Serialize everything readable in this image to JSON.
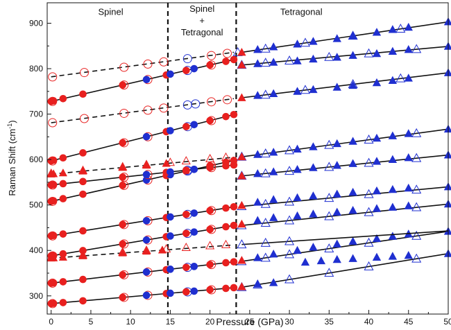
{
  "chart_data": {
    "type": "scatter",
    "title": "",
    "xlabel": "Pressure (GPa)",
    "ylabel_main": "Raman Shift (cm",
    "ylabel_sup": "-1",
    "ylabel_close": ")",
    "xlim": [
      -0.5,
      50
    ],
    "ylim": [
      260,
      945
    ],
    "x_ticks": [
      0,
      5,
      10,
      15,
      20,
      25,
      30,
      35,
      40,
      45,
      50
    ],
    "x_tick_labels": [
      "0",
      "5",
      "10",
      "15",
      "20",
      "25",
      "30",
      "35",
      "40",
      "45",
      "50"
    ],
    "y_ticks": [
      300,
      400,
      500,
      600,
      700,
      800,
      900
    ],
    "y_tick_labels": [
      "300",
      "400",
      "500",
      "600",
      "700",
      "800",
      "900"
    ],
    "grid": false,
    "phase_boundaries": [
      14.7,
      23.3
    ],
    "regions": [
      {
        "lines": [
          "Spinel"
        ],
        "x": 7.5,
        "y": 918
      },
      {
        "lines": [
          "Spinel",
          "+",
          "Tetragonal"
        ],
        "x": 19.0,
        "y": 925
      },
      {
        "lines": [
          "Tetragonal"
        ],
        "x": 31.5,
        "y": 918
      }
    ],
    "colors": {
      "red": "#e8201f",
      "blue": "#1f2fd0",
      "line": "#111111"
    },
    "modes": [
      {
        "dashed": false,
        "red_end": 23,
        "red_x": [
          0,
          0.3,
          1.5,
          4,
          9,
          12,
          14.5,
          15,
          17,
          18,
          20,
          22,
          23
        ],
        "fit": [
          [
            0,
            283
          ],
          [
            23,
            318
          ],
          [
            24,
            319
          ],
          [
            50,
            393
          ]
        ],
        "blue_x": [
          24,
          26,
          28,
          32,
          34,
          36,
          38,
          41,
          43,
          45,
          50
        ],
        "blue_y": [
          320,
          326,
          329,
          374,
          377,
          380,
          382,
          385,
          387,
          389,
          393
        ],
        "hollow_x": [
          0,
          9,
          12,
          17,
          20,
          24,
          26,
          30,
          35,
          40,
          46
        ],
        "tri_shift": 0
      },
      {
        "dashed": false,
        "red_end": 23,
        "red_x": [
          0,
          0.3,
          1.5,
          4,
          9,
          12,
          14.5,
          15,
          17,
          18,
          20,
          22,
          23
        ],
        "fit": [
          [
            0,
            328
          ],
          [
            23,
            375
          ],
          [
            24,
            376
          ],
          [
            50,
            442
          ]
        ],
        "blue_x": [
          24,
          26,
          28,
          31,
          33,
          36,
          38,
          41,
          43,
          45,
          50
        ],
        "blue_y": [
          378,
          384,
          392,
          400,
          407,
          414,
          420,
          426,
          431,
          436,
          442
        ],
        "hollow_x": [
          0,
          9,
          12,
          17,
          20,
          24,
          27,
          30,
          35,
          40,
          46
        ],
        "tri_shift": 0
      },
      {
        "dashed": true,
        "red_end": 14,
        "red_x": [
          0,
          0.3,
          1.5,
          4,
          9,
          12,
          14
        ],
        "fit": [
          [
            0,
            383
          ],
          [
            23,
            412
          ],
          [
            24,
            413
          ],
          [
            50,
            443
          ]
        ],
        "blue_x": [],
        "blue_y": [],
        "hollow_x": [
          0,
          4,
          9,
          12,
          14.5,
          17,
          20,
          22,
          24,
          27,
          30
        ],
        "tri_shift": 10
      },
      {
        "dashed": false,
        "red_end": 23,
        "red_x": [
          0,
          0.3,
          1.5,
          4,
          9,
          12,
          14.5,
          15,
          17,
          18,
          20,
          22,
          23
        ],
        "fit": [
          [
            0,
            388
          ],
          [
            23,
            455
          ],
          [
            24,
            455
          ],
          [
            50,
            502
          ]
        ],
        "blue_x": [
          24,
          26,
          28,
          31,
          33,
          36,
          38,
          41,
          43,
          45,
          50
        ],
        "blue_y": [
          458,
          466,
          472,
          476,
          480,
          484,
          488,
          492,
          495,
          498,
          502
        ],
        "hollow_x": [
          0,
          9,
          12,
          17,
          20,
          24,
          27,
          30,
          35,
          40,
          46
        ],
        "tri_shift": 0
      },
      {
        "dashed": false,
        "red_end": 23,
        "red_x": [
          0,
          0.3,
          1.5,
          4,
          9,
          12,
          14.5,
          15,
          17,
          18,
          20,
          22,
          23
        ],
        "fit": [
          [
            0,
            432
          ],
          [
            23,
            496
          ],
          [
            24,
            497
          ],
          [
            50,
            540
          ]
        ],
        "blue_x": [
          24,
          26,
          28,
          31,
          33,
          36,
          38,
          41,
          43,
          45,
          50
        ],
        "blue_y": [
          499,
          506,
          512,
          516,
          520,
          524,
          528,
          531,
          534,
          537,
          540
        ],
        "hollow_x": [
          0,
          9,
          12,
          17,
          20,
          24,
          27,
          30,
          35,
          40,
          46
        ],
        "tri_shift": 0
      },
      {
        "dashed": false,
        "red_end": 23,
        "red_x": [
          0,
          0.3,
          1.5,
          4,
          9,
          12,
          14.5,
          15,
          17,
          18,
          20,
          22,
          23
        ],
        "fit": [
          [
            0,
            508
          ],
          [
            23,
            598
          ],
          [
            24,
            564
          ],
          [
            50,
            610
          ]
        ],
        "blue_x": [
          24,
          26,
          28,
          31,
          33,
          36,
          38,
          41,
          43,
          45,
          50
        ],
        "blue_y": [
          564,
          569,
          573,
          578,
          582,
          587,
          591,
          596,
          600,
          604,
          610
        ],
        "hollow_x": [
          0,
          9,
          12,
          17,
          20,
          24,
          27,
          30,
          35,
          40,
          46
        ],
        "tri_shift": 0
      },
      {
        "dashed": false,
        "red_end": 23,
        "red_x": [
          0,
          0.3,
          1.5,
          4,
          9,
          12,
          14.5,
          15,
          17,
          18,
          20,
          22,
          23
        ],
        "fit": [
          [
            0,
            544
          ],
          [
            23,
            588
          ],
          [
            24,
            606
          ],
          [
            50,
            667
          ]
        ],
        "blue_x": [
          24,
          26,
          28,
          31,
          33,
          36,
          38,
          41,
          43,
          45,
          50
        ],
        "blue_y": [
          606,
          611,
          616,
          623,
          628,
          635,
          640,
          647,
          652,
          657,
          667
        ],
        "hollow_x": [
          0,
          9,
          12,
          17,
          20,
          24,
          27,
          30,
          35,
          40,
          46
        ],
        "tri_shift": 0
      },
      {
        "dashed": true,
        "red_end": 15,
        "red_x": [
          0,
          0.3,
          1.5,
          4,
          9,
          12,
          14.5
        ],
        "fit": [
          [
            0,
            568
          ],
          [
            23,
            605
          ],
          [
            24,
            606
          ]
        ],
        "blue_x": [],
        "blue_y": [],
        "hollow_x": [
          0,
          4,
          9,
          12,
          15,
          17,
          20,
          22
        ],
        "tri_shift": 8
      },
      {
        "dashed": false,
        "red_end": 23,
        "red_x": [
          0,
          0.3,
          1.5,
          4,
          9,
          12,
          14.5,
          15,
          17,
          18,
          20,
          22,
          23
        ],
        "fit": [
          [
            0,
            597
          ],
          [
            23,
            699
          ]
        ],
        "blue_x": [],
        "blue_y": [],
        "hollow_x": [
          0,
          9,
          12,
          17,
          20
        ],
        "tri_shift": 0
      },
      {
        "dashed": true,
        "red_end": 0,
        "red_x": [],
        "fit": [
          [
            0,
            681
          ],
          [
            23,
            734
          ],
          [
            24,
            736
          ],
          [
            50,
            791
          ]
        ],
        "blue_x": [
          24,
          26,
          28,
          31,
          33,
          36,
          38,
          41,
          43,
          45,
          50
        ],
        "blue_y": [
          736,
          741,
          745,
          750,
          754,
          759,
          763,
          769,
          774,
          779,
          791
        ],
        "hollow_x": [
          0,
          4,
          9,
          12,
          14,
          17,
          18,
          20,
          22,
          27,
          32,
          38,
          44
        ],
        "tri_shift": 0
      },
      {
        "dashed": false,
        "red_end": 23,
        "red_x": [
          0,
          0.3,
          1.5,
          4,
          9,
          12,
          14.5,
          15,
          17,
          18,
          20,
          22,
          23
        ],
        "fit": [
          [
            0,
            728
          ],
          [
            23,
            820
          ],
          [
            24,
            808
          ],
          [
            50,
            849
          ]
        ],
        "blue_x": [
          24,
          26,
          28,
          31,
          33,
          36,
          38,
          41,
          43,
          45,
          50
        ],
        "blue_y": [
          808,
          811,
          814,
          817,
          821,
          825,
          829,
          833,
          838,
          842,
          849
        ],
        "hollow_x": [
          0,
          9,
          12,
          17,
          20,
          24,
          27,
          30,
          35,
          40,
          46
        ],
        "tri_shift": 0
      },
      {
        "dashed": true,
        "red_end": 0,
        "red_x": [],
        "fit": [
          [
            0,
            782
          ],
          [
            23,
            836
          ],
          [
            24,
            836
          ],
          [
            50,
            903
          ]
        ],
        "blue_x": [
          24,
          26,
          28,
          31,
          33,
          36,
          38,
          41,
          43,
          45,
          50
        ],
        "blue_y": [
          836,
          842,
          848,
          854,
          860,
          866,
          872,
          880,
          886,
          891,
          903
        ],
        "hollow_x": [
          0,
          4,
          9,
          12,
          14,
          17,
          20,
          22,
          23.5,
          27,
          32,
          38,
          44
        ],
        "tri_shift": 0
      }
    ]
  }
}
